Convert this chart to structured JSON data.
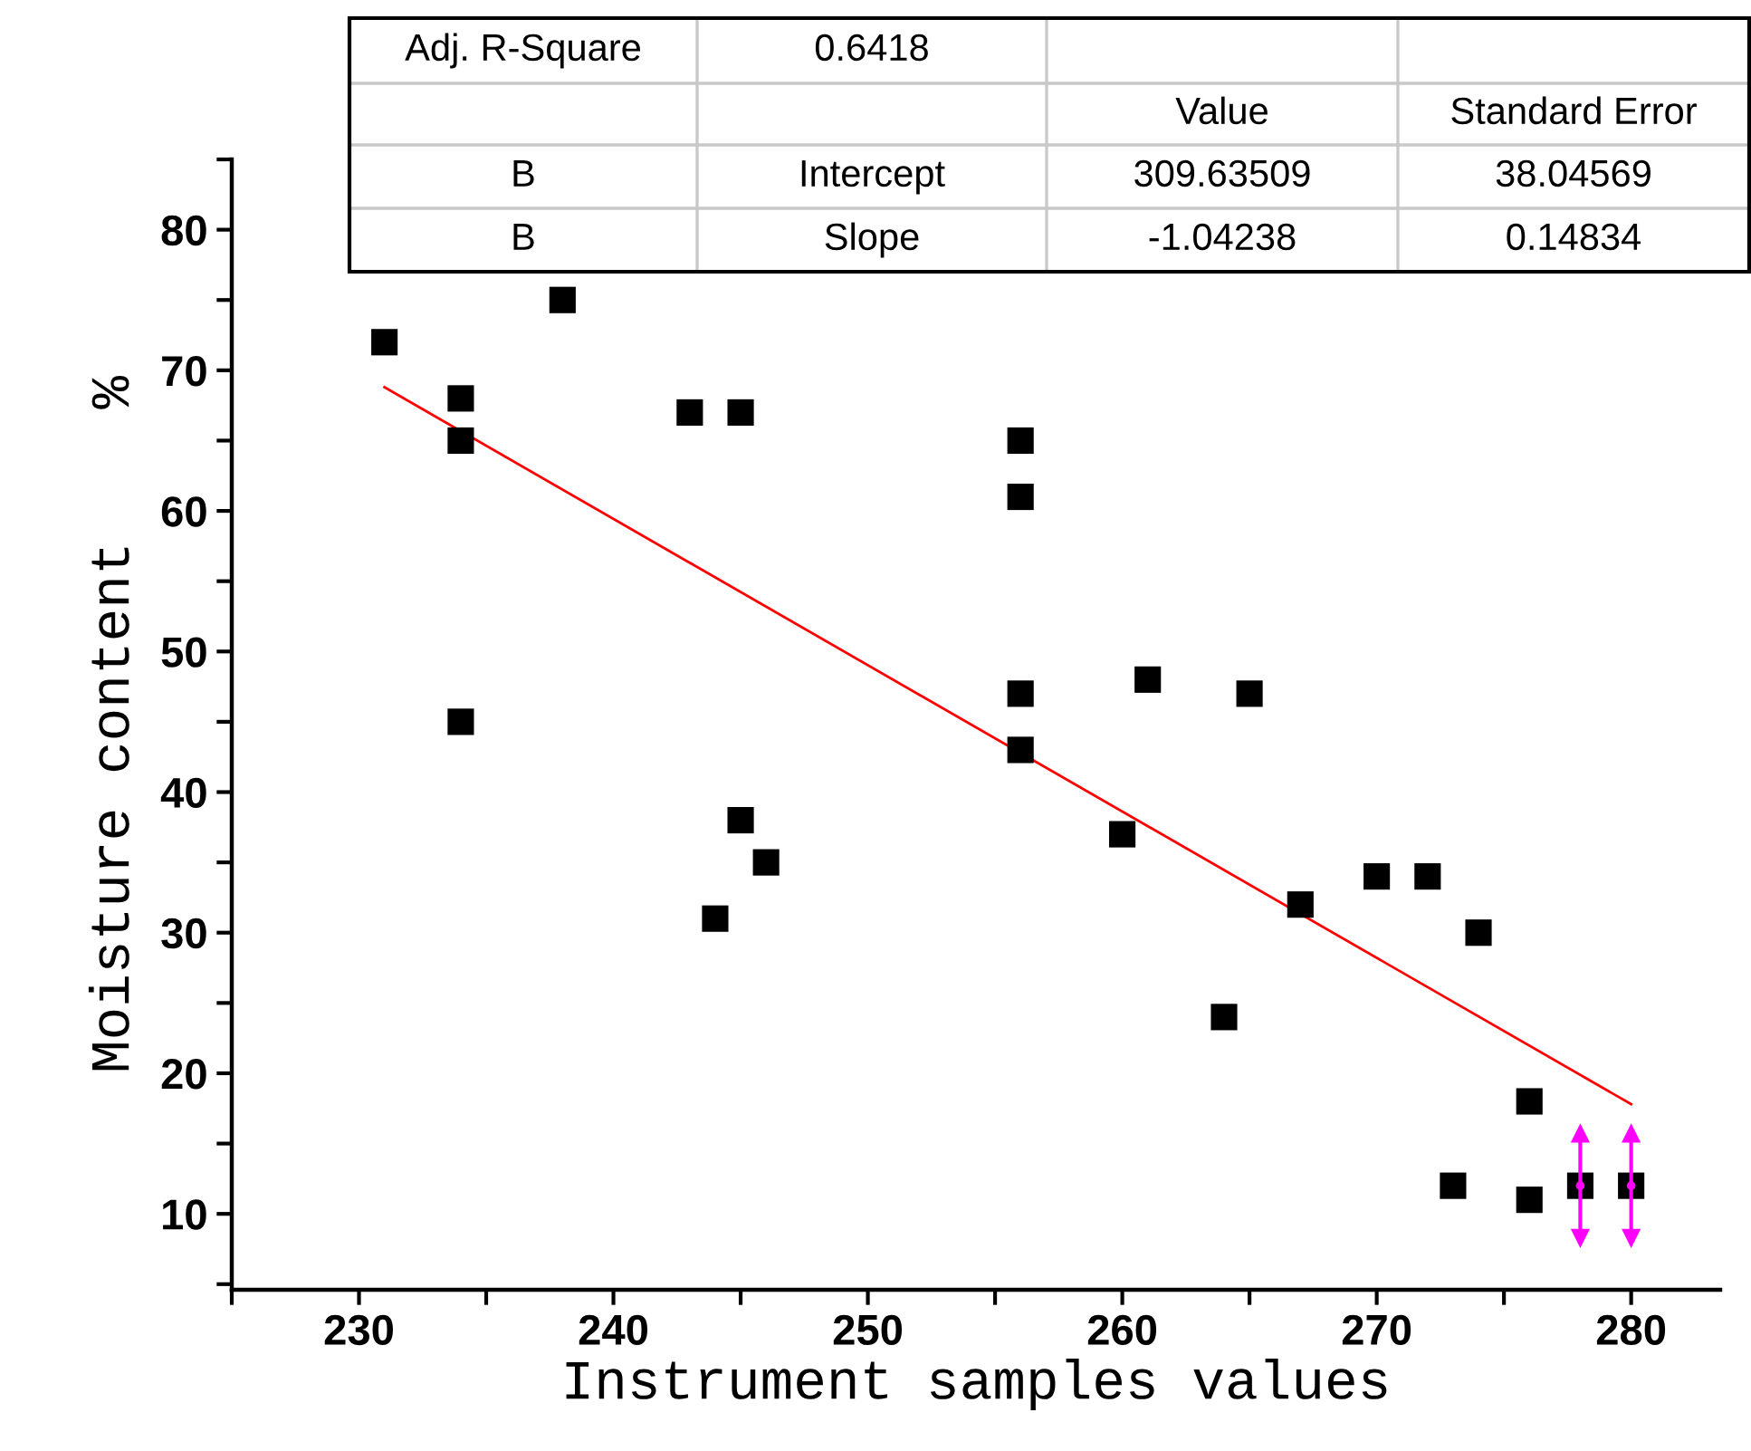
{
  "chart_data": {
    "type": "scatter",
    "xlabel": "Instrument samples values",
    "ylabel": "Moisture content    %",
    "x": [
      231,
      234,
      234,
      234,
      238,
      243,
      245,
      245,
      246,
      244,
      256,
      256,
      256,
      256,
      260,
      261,
      265,
      264,
      267,
      270,
      272,
      274,
      276,
      273,
      276,
      278,
      280
    ],
    "series": [
      {
        "type": "scatter",
        "color": "#000000",
        "marker": "square",
        "values": [
          72,
          68,
          65,
          45,
          75,
          67,
          67,
          38,
          35,
          31,
          65,
          61,
          47,
          43,
          37,
          48,
          47,
          24,
          32,
          34,
          34,
          30,
          18,
          12,
          11,
          12,
          12
        ]
      },
      {
        "color": "#ff00ff",
        "marker": "circle",
        "x": [
          278,
          280
        ],
        "values": [
          12,
          12
        ],
        "errors": [
          3.7,
          3.7
        ]
      },
      {
        "type": "line",
        "color": "#ff0000",
        "x": [
          231,
          280
        ],
        "values": [
          68.8,
          17.8
        ]
      }
    ],
    "xlim": [
      225,
      283.5
    ],
    "ylim": [
      4.6,
      85
    ],
    "xticks": [
      {
        "value": 225,
        "label": null
      },
      230,
      {
        "value": 235,
        "label": null
      },
      240,
      {
        "value": 245,
        "label": null
      },
      250,
      {
        "value": 255,
        "label": null
      },
      260,
      {
        "value": 265,
        "label": null
      },
      270,
      {
        "value": 275,
        "label": null
      },
      280
    ],
    "yticks": [
      {
        "value": 5,
        "label": null
      },
      10,
      {
        "value": 15,
        "label": null
      },
      20,
      {
        "value": 25,
        "label": null
      },
      30,
      {
        "value": 35,
        "label": null
      },
      40,
      {
        "value": 45,
        "label": null
      },
      50,
      {
        "value": 55,
        "label": null
      },
      60,
      {
        "value": 65,
        "label": null
      },
      70,
      {
        "value": 75,
        "label": null
      },
      80,
      {
        "value": 85,
        "label": null
      }
    ],
    "grid": false,
    "legend": false,
    "annotations": [
      "Adj. R-Square",
      "0.6418",
      "Value",
      "Standard Error",
      "B",
      "Intercept",
      "309.63509",
      "38.04569",
      "B",
      "Slope",
      "-1.04238",
      "0.14834"
    ]
  }
}
